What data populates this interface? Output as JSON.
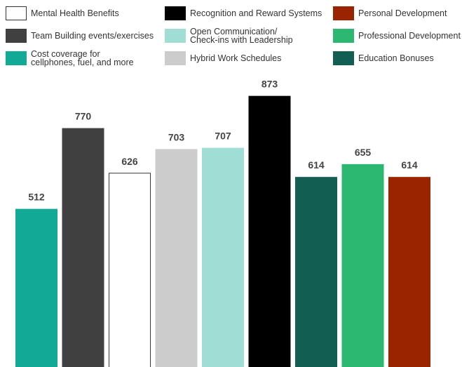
{
  "chart_data": {
    "type": "bar",
    "categories": [
      "Cost coverage for\ncellphones, fuel, and more",
      "Team Building events/exercises",
      "Mental Health Benefits",
      "Hybrid Work Schedules",
      "Open Communication/\nCheck-ins with Leadership",
      "Recognition and Reward Systems",
      "Education Bonuses",
      "Professional Development",
      "Personal Development"
    ],
    "values": [
      512,
      770,
      626,
      703,
      707,
      873,
      614,
      655,
      614
    ],
    "colors": [
      "#12a996",
      "#404040",
      "#ffffff",
      "#cccccc",
      "#a0ddd5",
      "#000000",
      "#135e53",
      "#2db872",
      "#9b2400"
    ]
  }
}
